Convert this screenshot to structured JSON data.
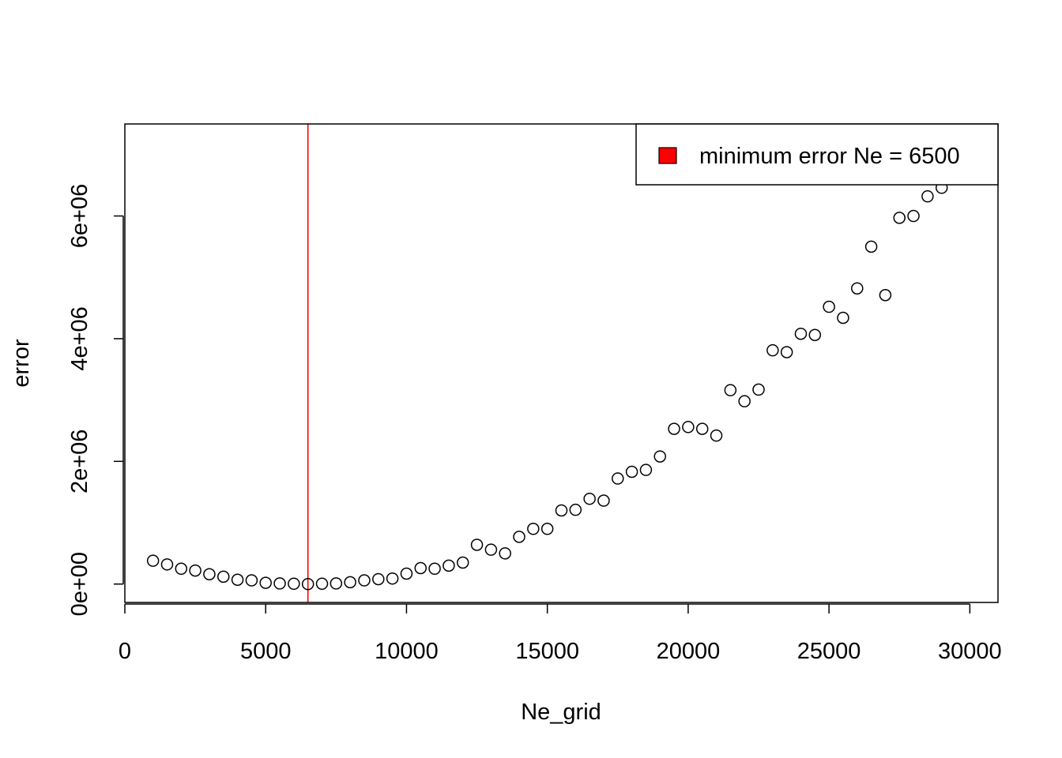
{
  "chart_data": {
    "type": "scatter",
    "title": "",
    "xlabel": "Ne_grid",
    "ylabel": "error",
    "xlim": [
      0,
      31000
    ],
    "ylim": [
      -300000,
      7500000
    ],
    "x_ticks": [
      0,
      5000,
      10000,
      15000,
      20000,
      25000,
      30000
    ],
    "x_tick_labels": [
      "0",
      "5000",
      "10000",
      "15000",
      "20000",
      "25000",
      "30000"
    ],
    "y_ticks": [
      0,
      2000000,
      4000000,
      6000000
    ],
    "y_tick_labels": [
      "0e+00",
      "2e+06",
      "4e+06",
      "6e+06"
    ],
    "grid": false,
    "vline": {
      "x": 6500,
      "color": "#ff0000"
    },
    "legend": {
      "position": "top-right",
      "label": "minimum error Ne = 6500",
      "color": "#ff0000"
    },
    "series": [
      {
        "marker": "open-circle",
        "x": [
          1000,
          1500,
          2000,
          2500,
          3000,
          3500,
          4000,
          4500,
          5000,
          5500,
          6000,
          6500,
          7000,
          7500,
          8000,
          8500,
          9000,
          9500,
          10000,
          10500,
          11000,
          11500,
          12000,
          12500,
          13000,
          13500,
          14000,
          14500,
          15000,
          15500,
          16000,
          16500,
          17000,
          17500,
          18000,
          18500,
          19000,
          19500,
          20000,
          20500,
          21000,
          21500,
          22000,
          22500,
          23000,
          23500,
          24000,
          24500,
          25000,
          25500,
          26000,
          26500,
          27000,
          27500,
          28000,
          28500,
          29000
        ],
        "y": [
          380000,
          320000,
          250000,
          220000,
          160000,
          120000,
          70000,
          60000,
          20000,
          10000,
          5000,
          0,
          5000,
          10000,
          30000,
          60000,
          80000,
          90000,
          170000,
          260000,
          250000,
          300000,
          350000,
          640000,
          560000,
          500000,
          770000,
          900000,
          900000,
          1200000,
          1210000,
          1390000,
          1360000,
          1720000,
          1830000,
          1860000,
          2080000,
          2530000,
          2560000,
          2530000,
          2420000,
          3160000,
          2980000,
          3170000,
          3810000,
          3780000,
          4080000,
          4060000,
          4520000,
          4340000,
          4820000,
          5500000,
          4710000,
          5970000,
          6000000,
          6320000,
          6460000
        ]
      }
    ]
  }
}
